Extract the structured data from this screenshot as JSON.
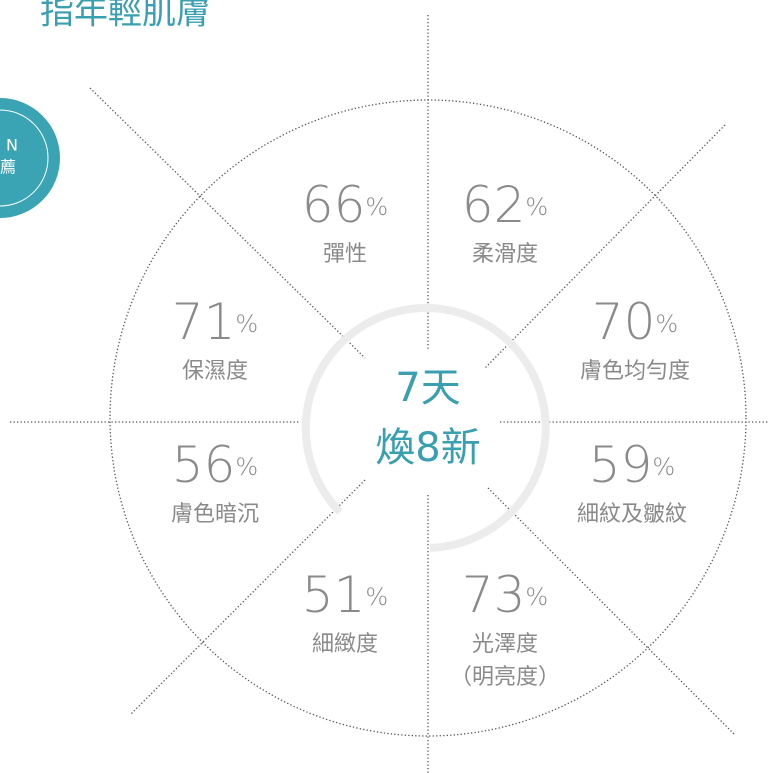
{
  "headline": "指年輕肌膚",
  "badge": {
    "line1": "N",
    "line2": "薦"
  },
  "center": {
    "line1": "7天",
    "line2": "煥8新"
  },
  "segments": [
    {
      "value": 66,
      "unit": "%",
      "label": "彈性"
    },
    {
      "value": 62,
      "unit": "%",
      "label": "柔滑度"
    },
    {
      "value": 71,
      "unit": "%",
      "label": "保濕度"
    },
    {
      "value": 70,
      "unit": "%",
      "label": "膚色均勻度"
    },
    {
      "value": 56,
      "unit": "%",
      "label": "膚色暗沉"
    },
    {
      "value": 59,
      "unit": "%",
      "label": "細紋及皺紋"
    },
    {
      "value": 51,
      "unit": "%",
      "label": "細緻度"
    },
    {
      "value": 73,
      "unit": "%",
      "label": "光澤度",
      "sublabel": "（明亮度）"
    }
  ]
}
